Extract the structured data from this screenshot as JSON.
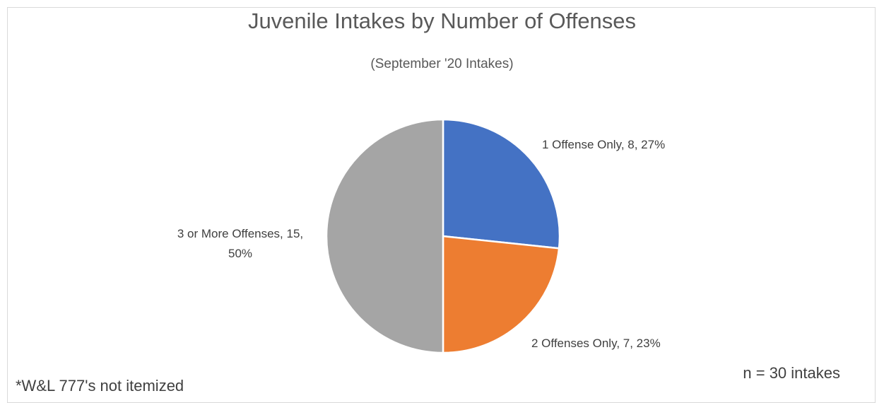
{
  "chart_data": {
    "type": "pie",
    "title": "Juvenile Intakes by Number of Offenses",
    "subtitle": "(September '20 Intakes)",
    "categories": [
      "1 Offense Only",
      "2 Offenses Only",
      "3 or More Offenses"
    ],
    "values": [
      8,
      7,
      15
    ],
    "percent_labels": [
      "27%",
      "23%",
      "50%"
    ],
    "data_labels": [
      "1 Offense Only, 8, 27%",
      "2 Offenses Only, 7, 23%",
      "3 or More Offenses, 15, 50%"
    ],
    "colors": [
      "#4472c4",
      "#ed7d31",
      "#a5a5a5"
    ],
    "legend": "none"
  },
  "notes": {
    "n_text": "n = 30 intakes",
    "footnote": "*W&L 777's not itemized"
  }
}
